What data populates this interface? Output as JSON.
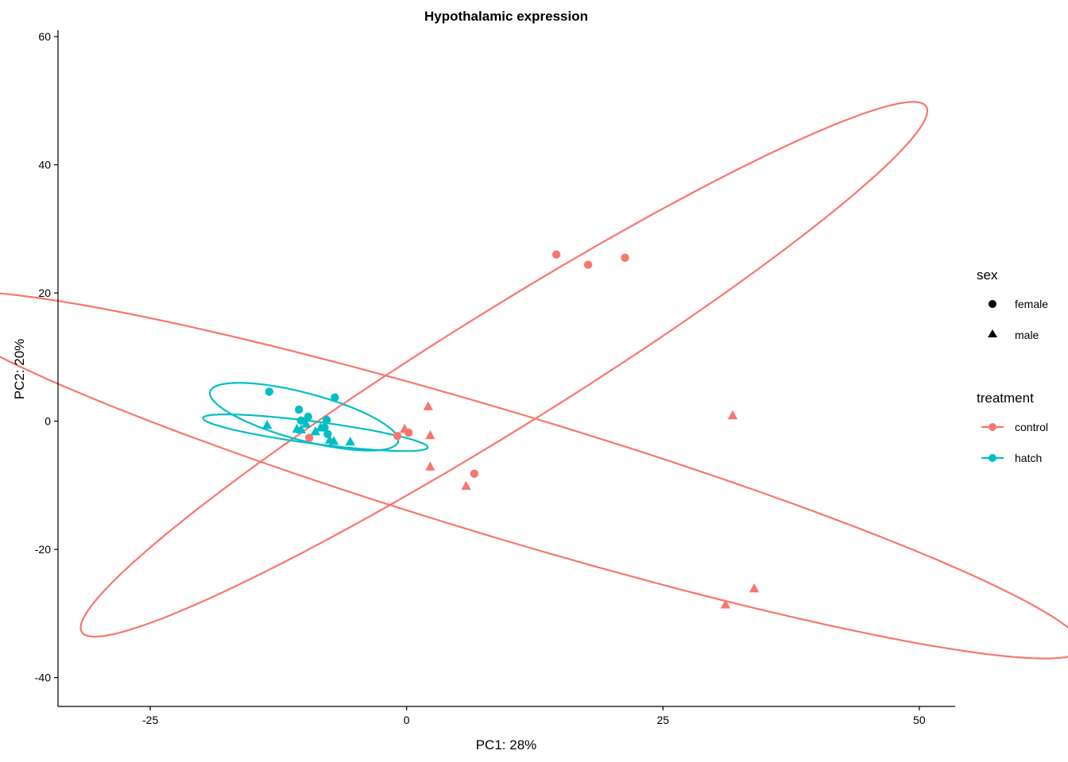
{
  "chart_data": {
    "type": "scatter",
    "title": "Hypothalamic expression",
    "xlabel": "PC1: 28%",
    "ylabel": "PC2: 20%",
    "xlim": [
      -34,
      53.5
    ],
    "ylim": [
      -44.5,
      61
    ],
    "x_ticks": [
      -25,
      0,
      25,
      50
    ],
    "x_tick_labels": [
      "-25",
      "0",
      "25",
      "50"
    ],
    "y_ticks": [
      -40,
      -20,
      0,
      20,
      40,
      60
    ],
    "y_tick_labels": [
      "-40",
      "-20",
      "0",
      "20",
      "40",
      "60"
    ],
    "grid": false,
    "legend_position": "right",
    "legend": {
      "sex": {
        "title": "sex",
        "items": [
          {
            "label": "female",
            "shape": "circle"
          },
          {
            "label": "male",
            "shape": "triangle"
          }
        ]
      },
      "treatment": {
        "title": "treatment",
        "items": [
          {
            "label": "control",
            "color": "#F8766D"
          },
          {
            "label": "hatch",
            "color": "#00BFC4"
          }
        ]
      }
    },
    "colors": {
      "control": "#F8766D",
      "hatch": "#00BFC4"
    },
    "points": [
      {
        "x": 14.6,
        "y": 26.0,
        "treatment": "control",
        "sex": "female"
      },
      {
        "x": 17.7,
        "y": 24.4,
        "treatment": "control",
        "sex": "female"
      },
      {
        "x": 21.3,
        "y": 25.5,
        "treatment": "control",
        "sex": "female"
      },
      {
        "x": -0.9,
        "y": -2.3,
        "treatment": "control",
        "sex": "female"
      },
      {
        "x": 0.2,
        "y": -1.8,
        "treatment": "control",
        "sex": "female"
      },
      {
        "x": 6.6,
        "y": -8.2,
        "treatment": "control",
        "sex": "female"
      },
      {
        "x": -9.5,
        "y": -2.6,
        "treatment": "control",
        "sex": "female"
      },
      {
        "x": 2.1,
        "y": 2.3,
        "treatment": "control",
        "sex": "male"
      },
      {
        "x": 2.3,
        "y": -2.2,
        "treatment": "control",
        "sex": "male"
      },
      {
        "x": 2.3,
        "y": -7.1,
        "treatment": "control",
        "sex": "male"
      },
      {
        "x": -0.2,
        "y": -1.2,
        "treatment": "control",
        "sex": "male"
      },
      {
        "x": 5.8,
        "y": -10.1,
        "treatment": "control",
        "sex": "male"
      },
      {
        "x": 31.8,
        "y": 0.9,
        "treatment": "control",
        "sex": "male"
      },
      {
        "x": 33.9,
        "y": -26.1,
        "treatment": "control",
        "sex": "male"
      },
      {
        "x": 31.1,
        "y": -28.6,
        "treatment": "control",
        "sex": "male"
      },
      {
        "x": -13.4,
        "y": 4.6,
        "treatment": "hatch",
        "sex": "female"
      },
      {
        "x": -10.5,
        "y": 1.8,
        "treatment": "hatch",
        "sex": "female"
      },
      {
        "x": -7.0,
        "y": 3.7,
        "treatment": "hatch",
        "sex": "female"
      },
      {
        "x": -9.6,
        "y": 0.7,
        "treatment": "hatch",
        "sex": "female"
      },
      {
        "x": -7.8,
        "y": 0.2,
        "treatment": "hatch",
        "sex": "female"
      },
      {
        "x": -10.3,
        "y": 0.1,
        "treatment": "hatch",
        "sex": "female"
      },
      {
        "x": -8.0,
        "y": -1.0,
        "treatment": "hatch",
        "sex": "female"
      },
      {
        "x": -7.7,
        "y": -2.0,
        "treatment": "hatch",
        "sex": "female"
      },
      {
        "x": -13.6,
        "y": -0.6,
        "treatment": "hatch",
        "sex": "male"
      },
      {
        "x": -10.7,
        "y": -1.2,
        "treatment": "hatch",
        "sex": "male"
      },
      {
        "x": -9.8,
        "y": -0.4,
        "treatment": "hatch",
        "sex": "male"
      },
      {
        "x": -8.9,
        "y": -1.6,
        "treatment": "hatch",
        "sex": "male"
      },
      {
        "x": -8.4,
        "y": -1.0,
        "treatment": "hatch",
        "sex": "male"
      },
      {
        "x": -10.3,
        "y": -1.3,
        "treatment": "hatch",
        "sex": "male"
      },
      {
        "x": -7.5,
        "y": -2.9,
        "treatment": "hatch",
        "sex": "male"
      },
      {
        "x": -7.1,
        "y": -3.1,
        "treatment": "hatch",
        "sex": "male"
      },
      {
        "x": -5.5,
        "y": -3.2,
        "treatment": "hatch",
        "sex": "male"
      }
    ],
    "ellipses": [
      {
        "treatment": "control",
        "sex": "female",
        "cx": 9.5,
        "cy": 8.1,
        "a": 58.2,
        "b": 7.6,
        "angle_deg": 45.3
      },
      {
        "treatment": "control",
        "sex": "male",
        "cx": 9.6,
        "cy": -8.4,
        "a": 62.5,
        "b": 9.2,
        "angle_deg": -26.0
      },
      {
        "treatment": "hatch",
        "sex": "female",
        "cx": -10.0,
        "cy": 0.7,
        "a": 10.0,
        "b": 3.5,
        "angle_deg": -25.0
      },
      {
        "treatment": "hatch",
        "sex": "male",
        "cx": -8.9,
        "cy": -1.8,
        "a": 11.2,
        "b": 1.7,
        "angle_deg": -12.0
      }
    ]
  }
}
